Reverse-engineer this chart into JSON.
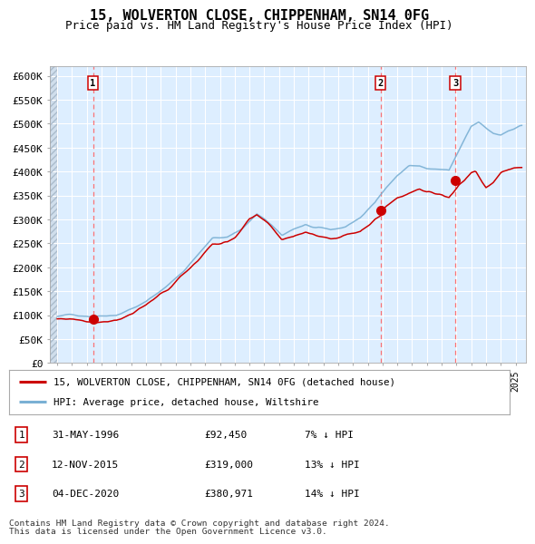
{
  "title": "15, WOLVERTON CLOSE, CHIPPENHAM, SN14 0FG",
  "subtitle": "Price paid vs. HM Land Registry's House Price Index (HPI)",
  "legend_property": "15, WOLVERTON CLOSE, CHIPPENHAM, SN14 0FG (detached house)",
  "legend_hpi": "HPI: Average price, detached house, Wiltshire",
  "footer_line1": "Contains HM Land Registry data © Crown copyright and database right 2024.",
  "footer_line2": "This data is licensed under the Open Government Licence v3.0.",
  "transactions": [
    {
      "num": 1,
      "date": "31-MAY-1996",
      "price": 92450,
      "hpi_diff": "7% ↓ HPI",
      "x_year": 1996.42
    },
    {
      "num": 2,
      "date": "12-NOV-2015",
      "price": 319000,
      "hpi_diff": "13% ↓ HPI",
      "x_year": 2015.87
    },
    {
      "num": 3,
      "date": "04-DEC-2020",
      "price": 380971,
      "hpi_diff": "14% ↓ HPI",
      "x_year": 2020.92
    }
  ],
  "ylabel_ticks": [
    "£0",
    "£50K",
    "£100K",
    "£150K",
    "£200K",
    "£250K",
    "£300K",
    "£350K",
    "£400K",
    "£450K",
    "£500K",
    "£550K",
    "£600K"
  ],
  "ytick_vals": [
    0,
    50000,
    100000,
    150000,
    200000,
    250000,
    300000,
    350000,
    400000,
    450000,
    500000,
    550000,
    600000
  ],
  "ylim": [
    0,
    620000
  ],
  "xlim_start": 1993.5,
  "xlim_end": 2025.7,
  "data_start": 1994.0,
  "property_color": "#cc0000",
  "hpi_color": "#7ab0d4",
  "vline_color": "#ff6666",
  "marker_color": "#cc0000",
  "bg_color": "#ddeeff",
  "hatch_color": "#c8d8e8",
  "grid_color": "#ffffff",
  "title_fontsize": 11,
  "subtitle_fontsize": 9,
  "tick_fontsize": 8,
  "xtick_fontsize": 7
}
